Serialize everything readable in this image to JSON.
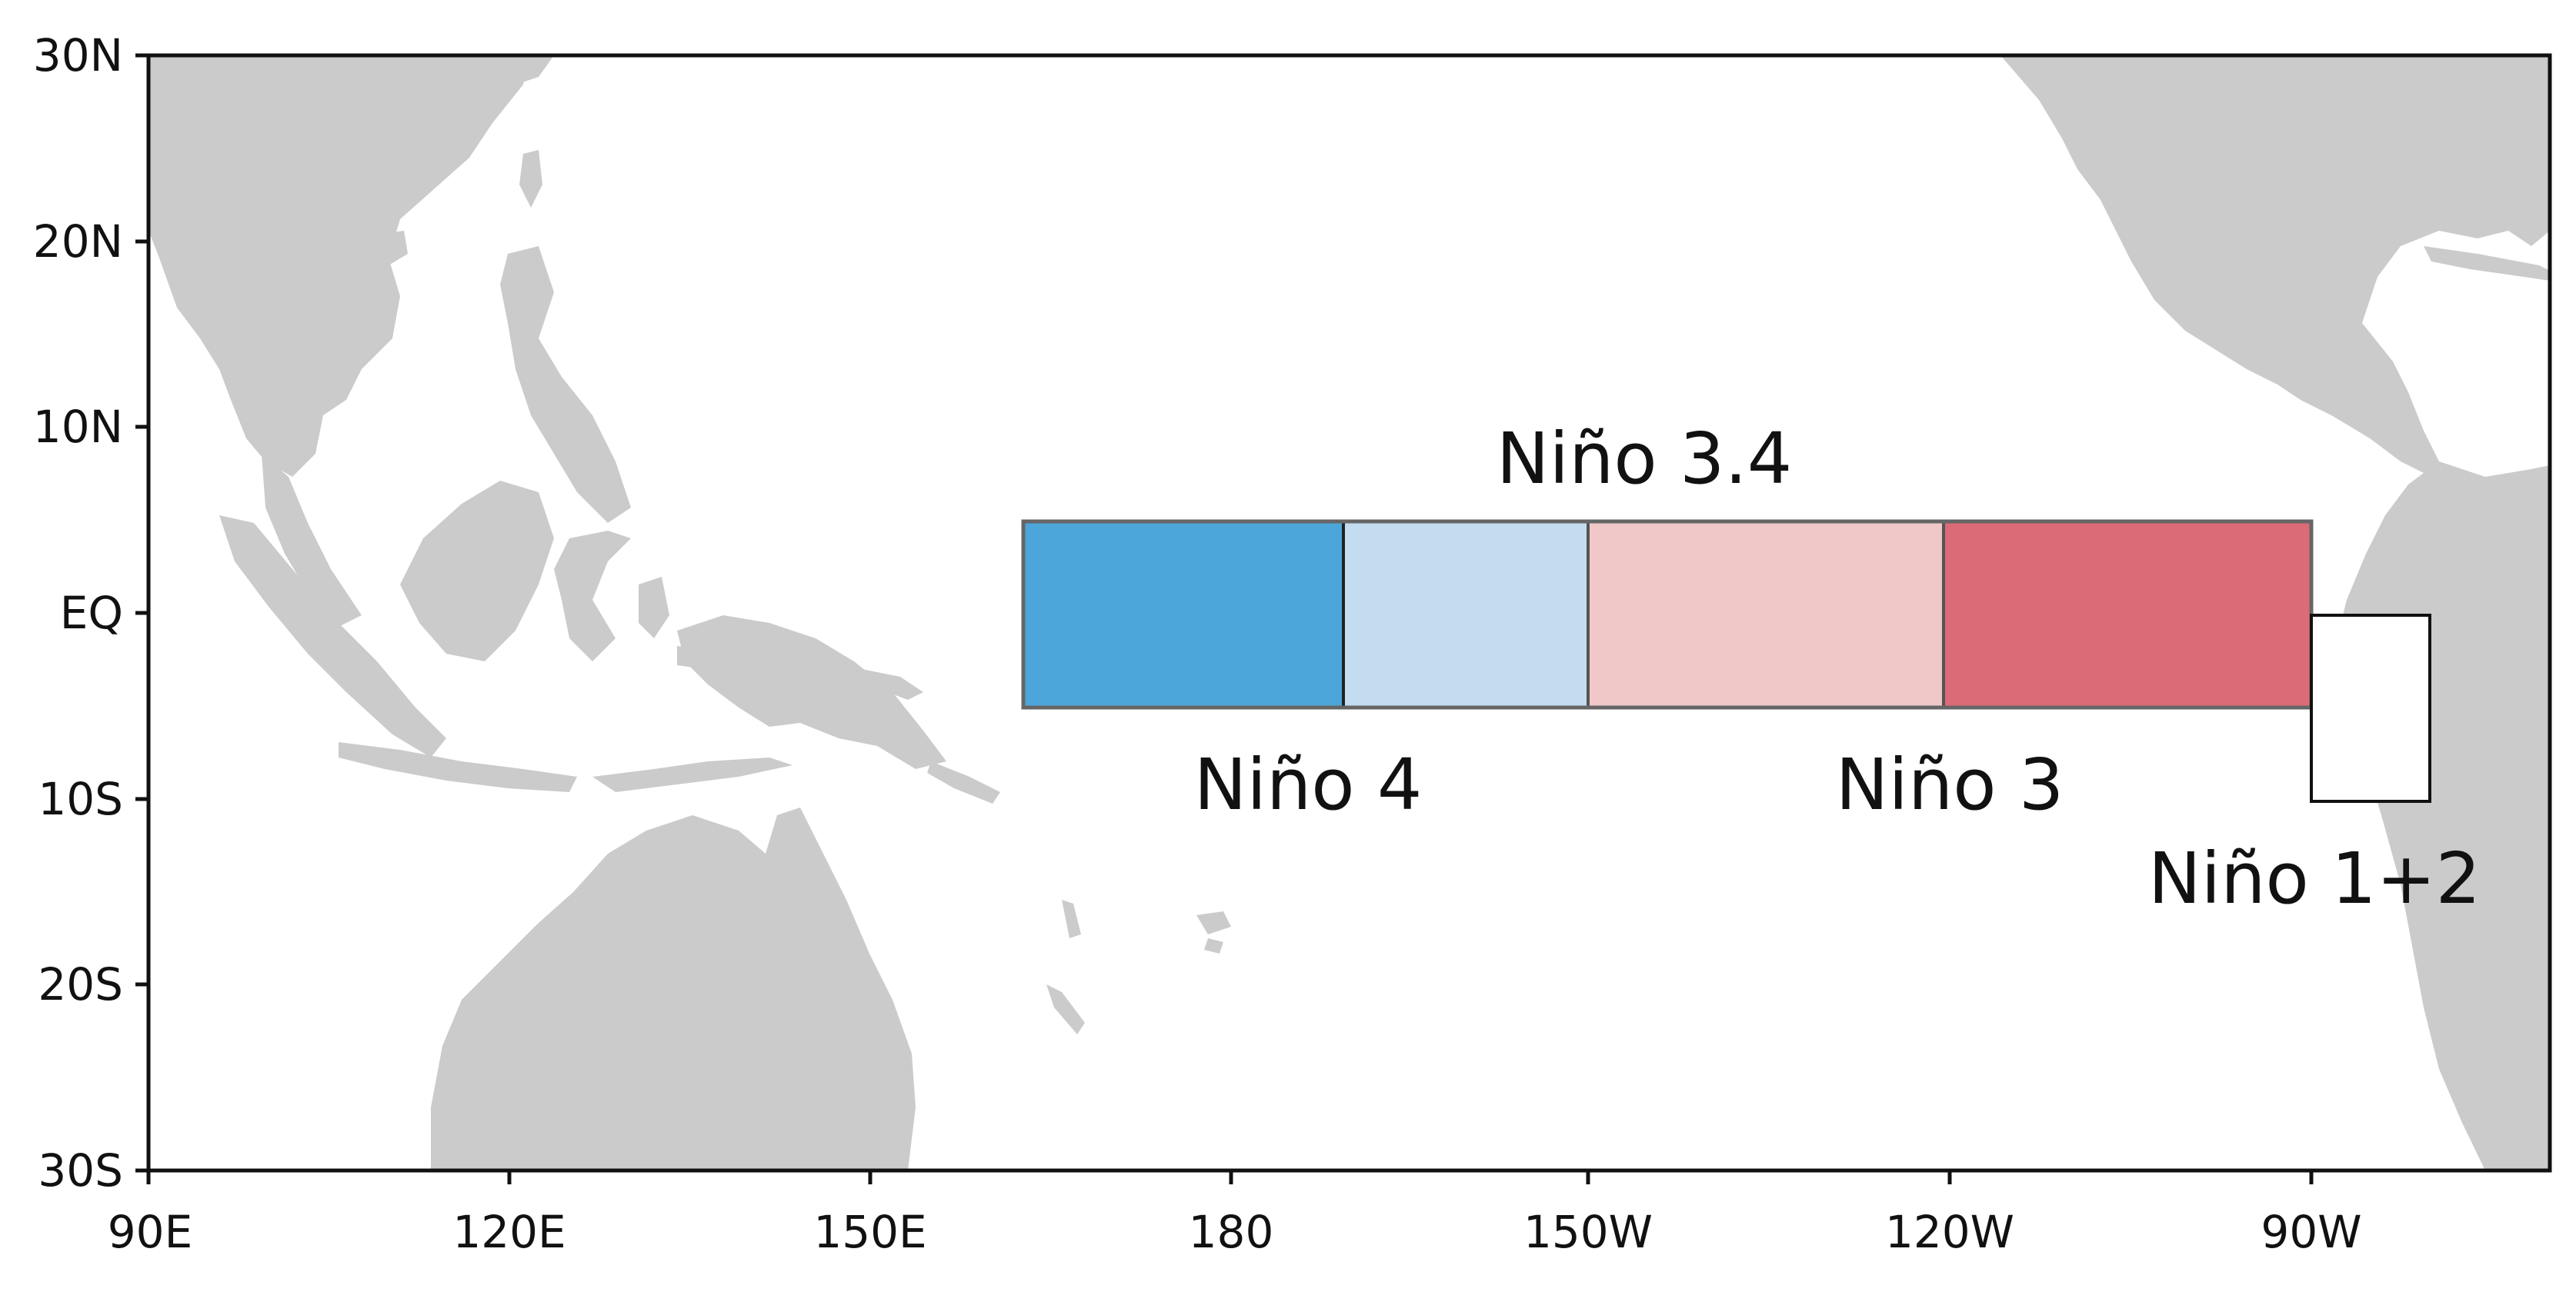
{
  "map": {
    "axes": {
      "lat_ticks": [
        "30N",
        "20N",
        "10N",
        "EQ",
        "10S",
        "20S",
        "30S"
      ],
      "lon_ticks": [
        "90E",
        "120E",
        "150E",
        "180",
        "150W",
        "120W",
        "90W"
      ]
    },
    "colors": {
      "land": "#cbcbcb",
      "frame": "#111111",
      "nino4_west": "#4da6d9",
      "nino4_east": "#c3dcef",
      "nino3_west": "#f0c8c8",
      "nino3_east": "#dc6b78",
      "nino12": "#ffffff"
    },
    "regions": {
      "nino34": {
        "label": "Niño 3.4",
        "lat_range": [
          "5N",
          "5S"
        ],
        "lon_range": [
          "170W",
          "120W"
        ]
      },
      "nino4": {
        "label": "Niño 4",
        "lat_range": [
          "5N",
          "5S"
        ],
        "lon_range": [
          "160E",
          "150W"
        ]
      },
      "nino3": {
        "label": "Niño 3",
        "lat_range": [
          "5N",
          "5S"
        ],
        "lon_range": [
          "150W",
          "90W"
        ]
      },
      "nino12": {
        "label": "Niño 1+2",
        "lat_range": [
          "0",
          "10S"
        ],
        "lon_range": [
          "90W",
          "80W"
        ]
      }
    }
  }
}
